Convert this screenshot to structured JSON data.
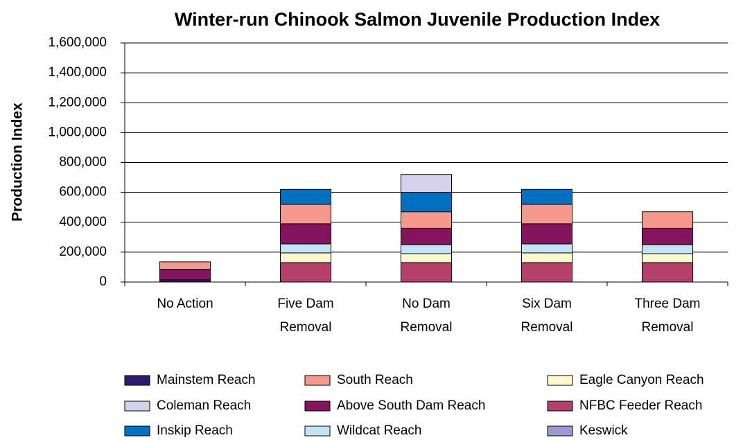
{
  "chart_data": {
    "type": "stacked_bar",
    "title": "Winter-run Chinook Salmon Juvenile Production Index",
    "y_label": "Production Index",
    "categories": [
      "No Action",
      "Five Dam Removal",
      "No Dam Removal",
      "Six Dam Removal",
      "Three Dam Removal"
    ],
    "series": [
      {
        "name": "Mainstem Reach",
        "color": "#2e1a6e",
        "values": [
          15000,
          0,
          0,
          0,
          0
        ]
      },
      {
        "name": "South Reach",
        "color": "#f4998c",
        "values": [
          50000,
          130000,
          110000,
          130000,
          110000
        ]
      },
      {
        "name": "Eagle Canyon Reach",
        "color": "#fdf9cc",
        "values": [
          0,
          65000,
          60000,
          65000,
          60000
        ]
      },
      {
        "name": "Coleman Reach",
        "color": "#d4d2ea",
        "values": [
          0,
          0,
          120000,
          0,
          0
        ]
      },
      {
        "name": "Above South Dam Reach",
        "color": "#85135e",
        "values": [
          70000,
          135000,
          110000,
          135000,
          110000
        ]
      },
      {
        "name": "NFBC Feeder Reach",
        "color": "#b5416b",
        "values": [
          0,
          130000,
          130000,
          130000,
          130000
        ]
      },
      {
        "name": "Inskip Reach",
        "color": "#0070c0",
        "values": [
          0,
          100000,
          130000,
          100000,
          0
        ]
      },
      {
        "name": "Wildcat Reach",
        "color": "#c4e4f6",
        "values": [
          0,
          60000,
          60000,
          60000,
          60000
        ]
      },
      {
        "name": "Keswick",
        "color": "#9a9ad0",
        "values": [
          0,
          0,
          0,
          0,
          0
        ]
      }
    ],
    "ylim": [
      0,
      1600000
    ],
    "yticks": [
      0,
      {
        "value": 200000,
        "label": "200,000"
      },
      {
        "value": 400000,
        "label": "400,000"
      },
      {
        "value": 600000,
        "label": "600,000"
      },
      {
        "value": 800000,
        "label": "800,000"
      },
      {
        "value": 1000000,
        "label": "1,000,000"
      },
      {
        "value": 1200000,
        "label": "1,200,000"
      },
      {
        "value": 1400000,
        "label": "1,400,000"
      },
      {
        "value": 1600000,
        "label": "1,600,000"
      }
    ],
    "grid": true
  }
}
